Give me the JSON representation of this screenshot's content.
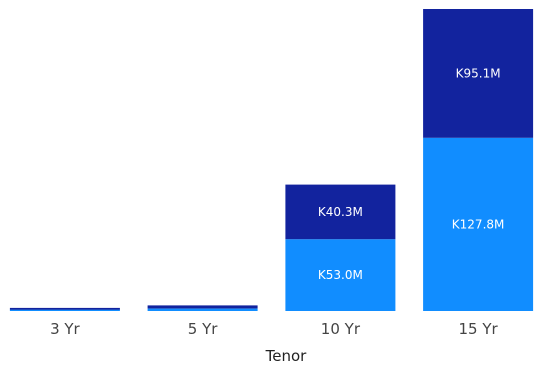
{
  "chart_data": {
    "type": "bar",
    "stacked": true,
    "xlabel": "Tenor",
    "ylabel": "",
    "categories": [
      "3 Yr",
      "5 Yr",
      "10 Yr",
      "15 Yr"
    ],
    "series": [
      {
        "color": "#118DFF",
        "values": [
          1.0,
          1.8,
          53.0,
          127.8
        ],
        "data_labels": [
          "",
          "",
          "K53.0M",
          "K127.8M"
        ]
      },
      {
        "color": "#12239E",
        "values": [
          1.3,
          2.3,
          40.3,
          95.1
        ],
        "data_labels": [
          "",
          "",
          "K40.3M",
          "K95.1M"
        ]
      }
    ],
    "ylim": [
      0,
      222.9
    ],
    "grid": false,
    "legend": "none"
  }
}
